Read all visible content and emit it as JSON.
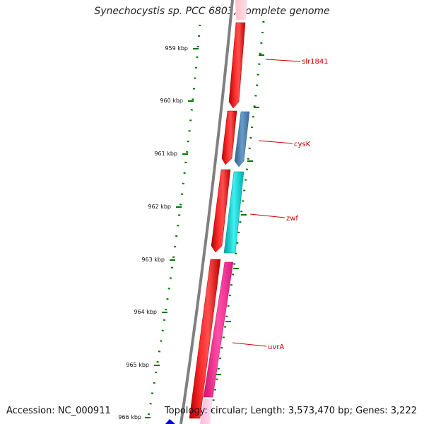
{
  "title": "Synechocystis sp. PCC 6803, complete genome",
  "footer": {
    "accession": "Accession: NC_000911",
    "summary": "Topology: circular; Length: 3,573,470 bp; Genes: 3,222"
  },
  "scale": {
    "ticks": [
      "959 kbp",
      "960 kbp",
      "961 kbp",
      "962 kbp",
      "963 kbp",
      "964 kbp",
      "965 kbp",
      "966 kbp"
    ]
  },
  "genes": [
    {
      "name": "slr1841",
      "color": "#ff0000",
      "strand": "outer"
    },
    {
      "name": "cysK",
      "color": "#4682b4",
      "strand": "outer"
    },
    {
      "name": "zwf",
      "color": "#00cccc",
      "strand": "outer"
    },
    {
      "name": "uvrA",
      "color": "#ff1493",
      "strand": "outer"
    }
  ],
  "colors": {
    "backbone": "#808080",
    "tick": "#007700",
    "label": "#cc0000"
  }
}
